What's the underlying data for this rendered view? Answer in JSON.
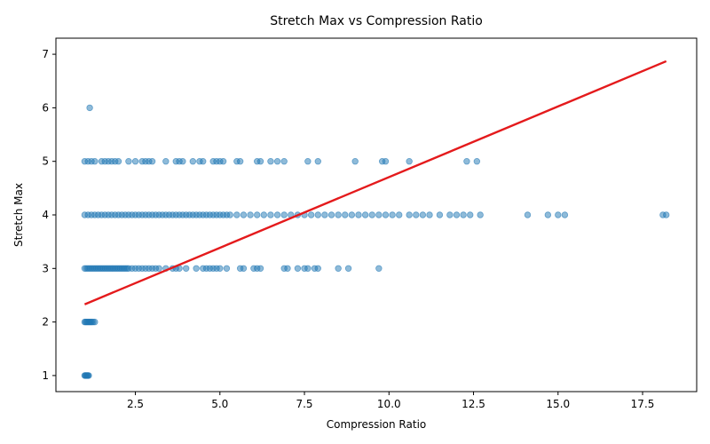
{
  "chart_data": {
    "type": "scatter",
    "title": "Stretch Max vs Compression Ratio",
    "xlabel": "Compression Ratio",
    "ylabel": "Stretch Max",
    "xlim": [
      0.15,
      19.1
    ],
    "ylim": [
      0.7,
      7.3
    ],
    "xticks": [
      2.5,
      5.0,
      7.5,
      10.0,
      12.5,
      15.0,
      17.5
    ],
    "xtick_labels": [
      "2.5",
      "5.0",
      "7.5",
      "10.0",
      "12.5",
      "15.0",
      "17.5"
    ],
    "yticks": [
      1,
      2,
      3,
      4,
      5,
      6,
      7
    ],
    "ytick_labels": [
      "1",
      "2",
      "3",
      "4",
      "5",
      "6",
      "7"
    ],
    "grid": false,
    "point_color": "#1f77b4",
    "trend_color": "#e41a1c",
    "trend_line": {
      "x": [
        1.0,
        18.2
      ],
      "y": [
        2.33,
        6.87
      ]
    },
    "series": [
      {
        "y": 1,
        "x": [
          1.0,
          1.02,
          1.04,
          1.06,
          1.08,
          1.1,
          1.12
        ]
      },
      {
        "y": 2,
        "x": [
          1.0,
          1.03,
          1.06,
          1.09,
          1.12,
          1.15,
          1.18,
          1.21,
          1.25,
          1.3
        ]
      },
      {
        "y": 3,
        "x": [
          1.0,
          1.05,
          1.1,
          1.15,
          1.2,
          1.25,
          1.3,
          1.35,
          1.4,
          1.45,
          1.5,
          1.55,
          1.6,
          1.65,
          1.7,
          1.75,
          1.8,
          1.85,
          1.9,
          1.95,
          2.0,
          2.05,
          2.1,
          2.15,
          2.2,
          2.25,
          2.3,
          2.4,
          2.5,
          2.6,
          2.7,
          2.8,
          2.9,
          3.0,
          3.1,
          3.2,
          3.4,
          3.6,
          3.7,
          3.8,
          4.0,
          4.3,
          4.5,
          4.6,
          4.7,
          4.8,
          4.9,
          5.0,
          5.2,
          5.6,
          5.7,
          6.0,
          6.1,
          6.2,
          6.9,
          7.0,
          7.3,
          7.5,
          7.6,
          7.8,
          7.9,
          8.5,
          8.8,
          9.7
        ]
      },
      {
        "y": 4,
        "x": [
          1.0,
          1.1,
          1.2,
          1.3,
          1.4,
          1.5,
          1.6,
          1.7,
          1.8,
          1.9,
          2.0,
          2.1,
          2.2,
          2.3,
          2.4,
          2.5,
          2.6,
          2.7,
          2.8,
          2.9,
          3.0,
          3.1,
          3.2,
          3.3,
          3.4,
          3.5,
          3.6,
          3.7,
          3.8,
          3.9,
          4.0,
          4.1,
          4.2,
          4.3,
          4.4,
          4.5,
          4.6,
          4.7,
          4.8,
          4.9,
          5.0,
          5.1,
          5.2,
          5.3,
          5.5,
          5.7,
          5.9,
          6.1,
          6.3,
          6.5,
          6.7,
          6.9,
          7.1,
          7.3,
          7.5,
          7.7,
          7.9,
          8.1,
          8.3,
          8.5,
          8.7,
          8.9,
          9.1,
          9.3,
          9.5,
          9.7,
          9.9,
          10.1,
          10.3,
          10.6,
          10.8,
          11.0,
          11.2,
          11.5,
          11.8,
          12.0,
          12.2,
          12.4,
          12.7,
          14.1,
          14.7,
          15.0,
          15.2,
          18.1,
          18.2
        ]
      },
      {
        "y": 5,
        "x": [
          1.0,
          1.1,
          1.2,
          1.3,
          1.5,
          1.6,
          1.7,
          1.8,
          1.9,
          2.0,
          2.3,
          2.5,
          2.7,
          2.8,
          2.9,
          3.0,
          3.4,
          3.7,
          3.8,
          3.9,
          4.2,
          4.4,
          4.5,
          4.8,
          4.9,
          5.0,
          5.1,
          5.5,
          5.6,
          6.1,
          6.2,
          6.5,
          6.7,
          6.9,
          7.6,
          7.9,
          9.0,
          9.8,
          9.9,
          10.6,
          12.3,
          12.6
        ]
      },
      {
        "y": 6,
        "x": [
          1.15
        ]
      }
    ]
  }
}
